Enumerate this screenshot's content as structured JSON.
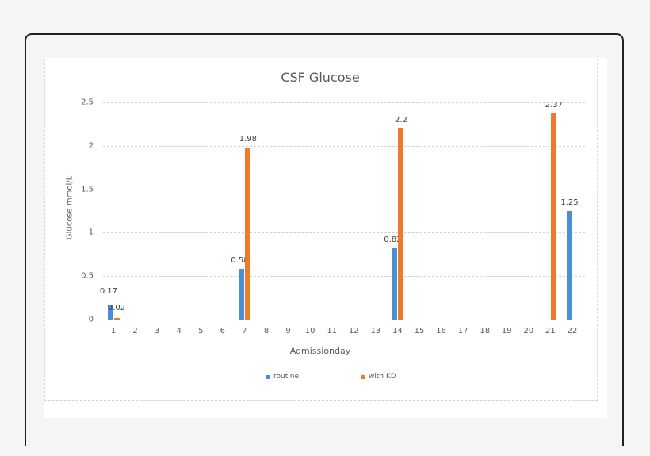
{
  "chart_data": {
    "type": "bar",
    "title": "CSF Glucose",
    "xlabel": "Admissionday",
    "ylabel": "Glucose mmol/L",
    "ylim": [
      0,
      2.5
    ],
    "yticks": [
      "0",
      "0.5",
      "1",
      "1.5",
      "2",
      "2.5"
    ],
    "grid": true,
    "legend_position": "bottom",
    "categories": [
      "1",
      "2",
      "3",
      "4",
      "5",
      "6",
      "7",
      "8",
      "9",
      "10",
      "11",
      "12",
      "13",
      "14",
      "15",
      "16",
      "17",
      "18",
      "19",
      "20",
      "21",
      "22"
    ],
    "series": [
      {
        "name": "routine",
        "color": "#4a8fd6",
        "values": [
          0.17,
          null,
          null,
          null,
          null,
          null,
          0.58,
          null,
          null,
          null,
          null,
          null,
          null,
          0.82,
          null,
          null,
          null,
          null,
          null,
          null,
          null,
          1.25
        ],
        "labels": [
          "0.17",
          "",
          "",
          "",
          "",
          "",
          "0.58",
          "",
          "",
          "",
          "",
          "",
          "",
          "0.82",
          "",
          "",
          "",
          "",
          "",
          "",
          "",
          "1.25"
        ]
      },
      {
        "name": "with KD",
        "color": "#f07a2a",
        "values": [
          0.02,
          null,
          null,
          null,
          null,
          null,
          1.98,
          null,
          null,
          null,
          null,
          null,
          null,
          2.2,
          null,
          null,
          null,
          null,
          null,
          null,
          2.37,
          null
        ],
        "labels": [
          "0.02",
          "",
          "",
          "",
          "",
          "",
          "1.98",
          "",
          "",
          "",
          "",
          "",
          "",
          "2.2",
          "",
          "",
          "",
          "",
          "",
          "",
          "2.37",
          ""
        ]
      }
    ]
  }
}
